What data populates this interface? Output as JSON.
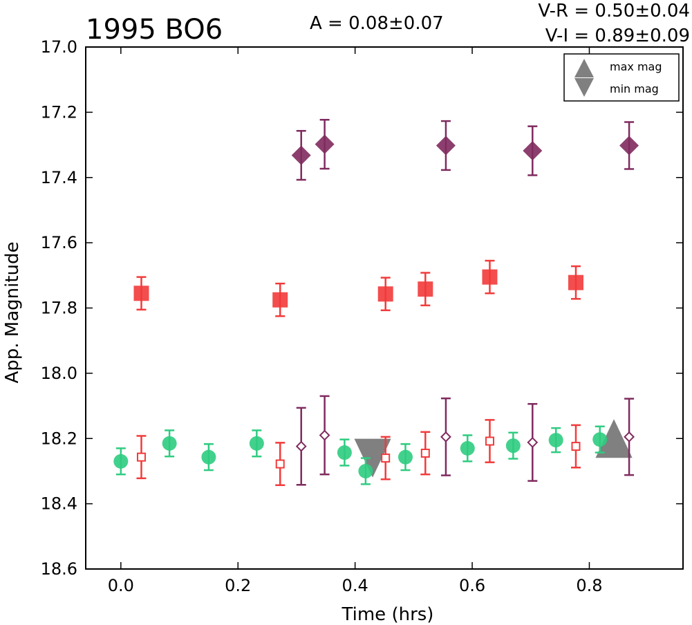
{
  "chart_data": {
    "type": "scatter",
    "title": "1995 BO6",
    "xlabel": "Time (hrs)",
    "ylabel": "App. Magnitude",
    "xlim": [
      -0.06,
      0.96
    ],
    "ylim": [
      18.6,
      17.0
    ],
    "y_inverted": true,
    "grid": false,
    "legend_position": "top-right",
    "x_ticks": [
      "0.0",
      "0.2",
      "0.4",
      "0.6",
      "0.8"
    ],
    "y_ticks": [
      "17.0",
      "17.2",
      "17.4",
      "17.6",
      "17.8",
      "18.0",
      "18.2",
      "18.4",
      "18.6"
    ],
    "annotations": {
      "amplitude": "A  = 0.08±0.07",
      "v_r": "V-R = 0.50±0.04",
      "v_i": "V-I  = 0.89±0.09"
    },
    "legend": [
      {
        "label": "max mag",
        "marker": "triangle-up",
        "color": "#808080"
      },
      {
        "label": "min mag",
        "marker": "triangle-down",
        "color": "#808080"
      }
    ],
    "colors": {
      "green": "#2ecc80",
      "red": "#f23a3a",
      "purple": "#7f2a5e",
      "gray": "#808080"
    },
    "series": [
      {
        "marker": "circle",
        "color": "#2ecc80",
        "fill": true,
        "points": [
          {
            "x": 0.0,
            "y": 18.27,
            "err": 0.04
          },
          {
            "x": 0.083,
            "y": 18.215,
            "err": 0.04
          },
          {
            "x": 0.15,
            "y": 18.257,
            "err": 0.04
          },
          {
            "x": 0.232,
            "y": 18.215,
            "err": 0.04
          },
          {
            "x": 0.382,
            "y": 18.243,
            "err": 0.04
          },
          {
            "x": 0.418,
            "y": 18.3,
            "err": 0.04
          },
          {
            "x": 0.486,
            "y": 18.257,
            "err": 0.04
          },
          {
            "x": 0.592,
            "y": 18.23,
            "err": 0.04
          },
          {
            "x": 0.67,
            "y": 18.222,
            "err": 0.04
          },
          {
            "x": 0.743,
            "y": 18.205,
            "err": 0.037
          },
          {
            "x": 0.818,
            "y": 18.203,
            "err": 0.04
          }
        ]
      },
      {
        "marker": "square",
        "color": "#f23a3a",
        "fill": true,
        "points": [
          {
            "x": 0.035,
            "y": 17.755,
            "err": 0.05
          },
          {
            "x": 0.272,
            "y": 17.775,
            "err": 0.05
          },
          {
            "x": 0.452,
            "y": 17.757,
            "err": 0.05
          },
          {
            "x": 0.52,
            "y": 17.742,
            "err": 0.05
          },
          {
            "x": 0.63,
            "y": 17.705,
            "err": 0.05
          },
          {
            "x": 0.777,
            "y": 17.722,
            "err": 0.05
          }
        ]
      },
      {
        "marker": "diamond",
        "color": "#7f2a5e",
        "fill": true,
        "points": [
          {
            "x": 0.308,
            "y": 17.332,
            "err": 0.075
          },
          {
            "x": 0.348,
            "y": 17.298,
            "err": 0.075
          },
          {
            "x": 0.555,
            "y": 17.302,
            "err": 0.075
          },
          {
            "x": 0.703,
            "y": 17.318,
            "err": 0.075
          },
          {
            "x": 0.868,
            "y": 17.302,
            "err": 0.072
          }
        ]
      },
      {
        "marker": "square",
        "color": "#f23a3a",
        "fill": false,
        "points": [
          {
            "x": 0.035,
            "y": 18.257,
            "err": 0.065
          },
          {
            "x": 0.272,
            "y": 18.278,
            "err": 0.065
          },
          {
            "x": 0.452,
            "y": 18.26,
            "err": 0.065
          },
          {
            "x": 0.52,
            "y": 18.245,
            "err": 0.065
          },
          {
            "x": 0.63,
            "y": 18.208,
            "err": 0.065
          },
          {
            "x": 0.777,
            "y": 18.224,
            "err": 0.065
          }
        ]
      },
      {
        "marker": "diamond",
        "color": "#7f2a5e",
        "fill": false,
        "points": [
          {
            "x": 0.308,
            "y": 18.224,
            "err": 0.118
          },
          {
            "x": 0.348,
            "y": 18.19,
            "err": 0.12
          },
          {
            "x": 0.555,
            "y": 18.195,
            "err": 0.118
          },
          {
            "x": 0.703,
            "y": 18.212,
            "err": 0.118
          },
          {
            "x": 0.868,
            "y": 18.195,
            "err": 0.117
          }
        ]
      }
    ],
    "extrema": [
      {
        "label": "min mag",
        "marker": "triangle-down",
        "x": 0.43,
        "y": 18.26
      },
      {
        "label": "max mag",
        "marker": "triangle-up",
        "x": 0.842,
        "y": 18.2
      }
    ]
  }
}
